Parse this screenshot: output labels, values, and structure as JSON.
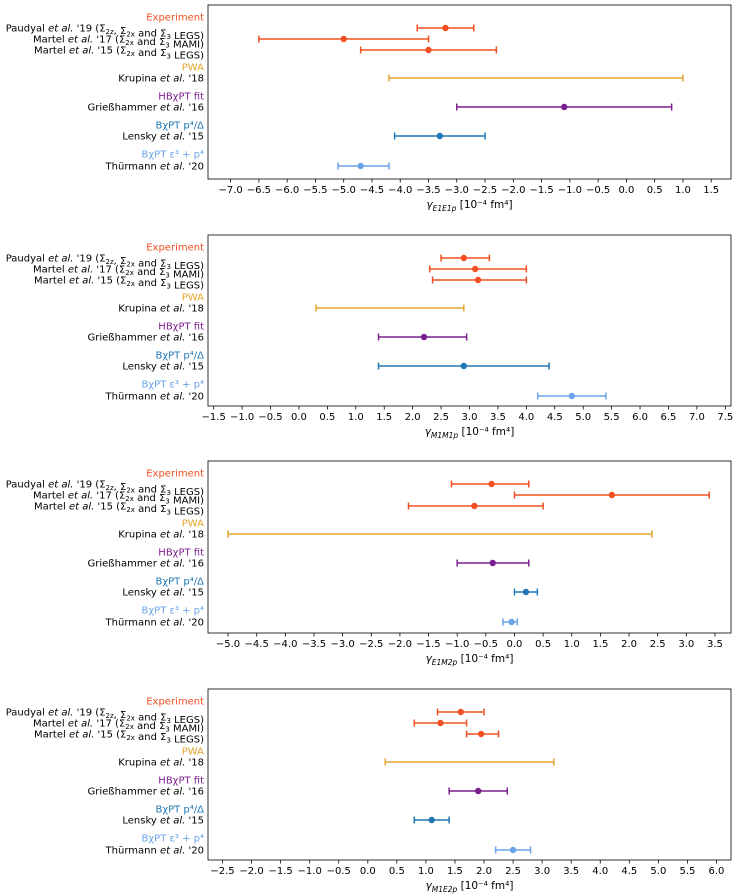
{
  "colors": {
    "experiment": "#f25022",
    "pwa": "#e6a630",
    "hbchpt": "#7b1f8e",
    "bchpt_p4": "#2077b4",
    "bchpt_eps": "#6aa3ea",
    "frame": "#000000",
    "background": "#ffffff"
  },
  "rows": [
    {
      "key": "exp",
      "label": "Experiment",
      "kind": "group",
      "color_key": "experiment"
    },
    {
      "key": "paudyal",
      "label": "Paudyal et al. '19 (Σ2z, Σ2x and Σ3 LEGS)",
      "kind": "entry",
      "color_key": "experiment"
    },
    {
      "key": "martel17",
      "label": "Martel et al. '17 (Σ2x and Σ3 MAMI)",
      "kind": "entry",
      "color_key": "experiment"
    },
    {
      "key": "martel15",
      "label": "Martel et al. '15 (Σ2x and Σ3 LEGS)",
      "kind": "entry",
      "color_key": "experiment"
    },
    {
      "key": "pwa",
      "label": "PWA",
      "kind": "group",
      "color_key": "pwa"
    },
    {
      "key": "krupina",
      "label": "Krupina et al. '18",
      "kind": "entry",
      "color_key": "pwa"
    },
    {
      "key": "hb",
      "label": "HBχPT fit",
      "kind": "group",
      "color_key": "hbchpt"
    },
    {
      "key": "griesshammer",
      "label": "Grießhammer et al. '16",
      "kind": "entry",
      "color_key": "hbchpt"
    },
    {
      "key": "bp4",
      "label": "BχPT p⁴/Δ",
      "kind": "group",
      "color_key": "bchpt_p4"
    },
    {
      "key": "lensky",
      "label": "Lensky et al. '15",
      "kind": "entry",
      "color_key": "bchpt_p4"
    },
    {
      "key": "beps",
      "label": "BχPT ε³ + p⁴",
      "kind": "group",
      "color_key": "bchpt_eps"
    },
    {
      "key": "thurmann",
      "label": "Thürmann et al. '20",
      "kind": "entry",
      "color_key": "bchpt_eps"
    }
  ],
  "chart_data": [
    {
      "type": "errorbar",
      "xlabel": "γE1E1p [10⁻⁴ fm⁴]",
      "xlim": [
        -7.4,
        1.85
      ],
      "xticks": [
        -7.0,
        -6.5,
        -6.0,
        -5.5,
        -5.0,
        -4.5,
        -4.0,
        -3.5,
        -3.0,
        -2.5,
        -2.0,
        -1.5,
        -1.0,
        -0.5,
        0.0,
        0.5,
        1.0,
        1.5
      ],
      "grid": false,
      "points": [
        {
          "row": "paudyal",
          "value": -3.2,
          "low": -3.7,
          "high": -2.7
        },
        {
          "row": "martel17",
          "value": -5.0,
          "low": -6.5,
          "high": -3.5
        },
        {
          "row": "martel15",
          "value": -3.5,
          "low": -4.7,
          "high": -2.3
        },
        {
          "row": "krupina",
          "value": null,
          "low": -4.2,
          "high": 1.0
        },
        {
          "row": "griesshammer",
          "value": -1.1,
          "low": -3.0,
          "high": 0.8
        },
        {
          "row": "lensky",
          "value": -3.3,
          "low": -4.1,
          "high": -2.5
        },
        {
          "row": "thurmann",
          "value": -4.7,
          "low": -5.1,
          "high": -4.2
        }
      ]
    },
    {
      "type": "errorbar",
      "xlabel": "γM1M1p [10⁻⁴ fm⁴]",
      "xlim": [
        -1.6,
        7.6
      ],
      "xticks": [
        -1.5,
        -1.0,
        -0.5,
        0.0,
        0.5,
        1.0,
        1.5,
        2.0,
        2.5,
        3.0,
        3.5,
        4.0,
        4.5,
        5.0,
        5.5,
        6.0,
        6.5,
        7.0,
        7.5
      ],
      "grid": false,
      "points": [
        {
          "row": "paudyal",
          "value": 2.9,
          "low": 2.5,
          "high": 3.35
        },
        {
          "row": "martel17",
          "value": 3.1,
          "low": 2.3,
          "high": 4.0
        },
        {
          "row": "martel15",
          "value": 3.15,
          "low": 2.35,
          "high": 4.0
        },
        {
          "row": "krupina",
          "value": null,
          "low": 0.3,
          "high": 2.9
        },
        {
          "row": "griesshammer",
          "value": 2.2,
          "low": 1.4,
          "high": 2.95
        },
        {
          "row": "lensky",
          "value": 2.9,
          "low": 1.4,
          "high": 4.4
        },
        {
          "row": "thurmann",
          "value": 4.8,
          "low": 4.2,
          "high": 5.4
        }
      ]
    },
    {
      "type": "errorbar",
      "xlabel": "γE1M2p [10⁻⁴ fm⁴]",
      "xlim": [
        -5.35,
        3.78
      ],
      "xticks": [
        -5.0,
        -4.5,
        -4.0,
        -3.5,
        -3.0,
        -2.5,
        -2.0,
        -1.5,
        -1.0,
        -0.5,
        0.0,
        0.5,
        1.0,
        1.5,
        2.0,
        2.5,
        3.0,
        3.5
      ],
      "grid": false,
      "points": [
        {
          "row": "paudyal",
          "value": -0.4,
          "low": -1.1,
          "high": 0.25
        },
        {
          "row": "martel17",
          "value": 1.7,
          "low": 0.0,
          "high": 3.4
        },
        {
          "row": "martel15",
          "value": -0.7,
          "low": -1.85,
          "high": 0.5
        },
        {
          "row": "krupina",
          "value": null,
          "low": -5.0,
          "high": 2.4
        },
        {
          "row": "griesshammer",
          "value": -0.38,
          "low": -1.0,
          "high": 0.25
        },
        {
          "row": "lensky",
          "value": 0.2,
          "low": 0.0,
          "high": 0.4
        },
        {
          "row": "thurmann",
          "value": -0.05,
          "low": -0.2,
          "high": 0.05
        }
      ]
    },
    {
      "type": "errorbar",
      "xlabel": "γM1E2p [10⁻⁴ fm⁴]",
      "xlim": [
        -2.75,
        6.25
      ],
      "xticks": [
        -2.5,
        -2.0,
        -1.5,
        -1.0,
        -0.5,
        0.0,
        0.5,
        1.0,
        1.5,
        2.0,
        2.5,
        3.0,
        3.5,
        4.0,
        4.5,
        5.0,
        5.5,
        6.0
      ],
      "grid": false,
      "points": [
        {
          "row": "paudyal",
          "value": 1.6,
          "low": 1.2,
          "high": 2.0
        },
        {
          "row": "martel17",
          "value": 1.25,
          "low": 0.8,
          "high": 1.7
        },
        {
          "row": "martel15",
          "value": 1.95,
          "low": 1.7,
          "high": 2.25
        },
        {
          "row": "krupina",
          "value": null,
          "low": 0.3,
          "high": 3.2
        },
        {
          "row": "griesshammer",
          "value": 1.9,
          "low": 1.4,
          "high": 2.4
        },
        {
          "row": "lensky",
          "value": 1.1,
          "low": 0.8,
          "high": 1.4
        },
        {
          "row": "thurmann",
          "value": 2.5,
          "low": 2.2,
          "high": 2.8
        }
      ]
    }
  ]
}
